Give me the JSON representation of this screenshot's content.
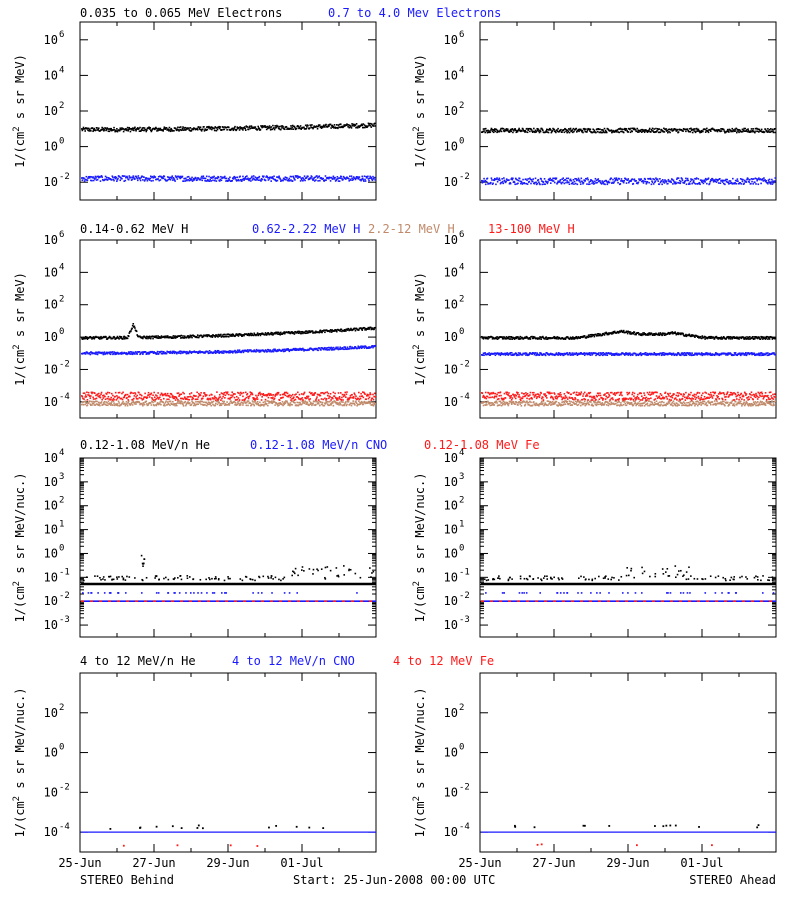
{
  "colors": {
    "black": "#000000",
    "blue": "#1a1aff",
    "tan": "#c08a6a",
    "red": "#ff1a1a"
  },
  "footer": {
    "left_label": "STEREO Behind",
    "center_label": "Start: 25-Jun-2008 00:00 UTC",
    "right_label": "STEREO Ahead"
  },
  "x_ticks": [
    "25-Jun",
    "27-Jun",
    "29-Jun",
    "01-Jul"
  ],
  "rows": [
    {
      "id": "electrons",
      "legend": [
        {
          "label": "0.035 to 0.065 MeV Electrons",
          "color": "#000000"
        },
        {
          "label": "0.7 to 4.0 Mev Electrons",
          "color": "#1a1aff"
        }
      ],
      "ylabel_main": "1/(cm",
      "ylabel_sup": "2",
      "ylabel_tail": " s sr MeV)",
      "y_ticks": [
        {
          "b": "10",
          "e": "-2",
          "v": -2
        },
        {
          "b": "10",
          "e": "0",
          "v": 0
        },
        {
          "b": "10",
          "e": "2",
          "v": 2
        },
        {
          "b": "10",
          "e": "4",
          "v": 4
        },
        {
          "b": "10",
          "e": "6",
          "v": 6
        }
      ]
    },
    {
      "id": "protons",
      "legend": [
        {
          "label": "0.14-0.62 MeV H",
          "color": "#000000"
        },
        {
          "label": "0.62-2.22 MeV H",
          "color": "#1a1aff"
        },
        {
          "label": "2.2-12 MeV H",
          "color": "#c08a6a"
        },
        {
          "label": "13-100 MeV H",
          "color": "#ff1a1a"
        }
      ],
      "ylabel_main": "1/(cm",
      "ylabel_sup": "2",
      "ylabel_tail": " s sr MeV)",
      "y_ticks": [
        {
          "b": "10",
          "e": "-4",
          "v": -4
        },
        {
          "b": "10",
          "e": "-2",
          "v": -2
        },
        {
          "b": "10",
          "e": "0",
          "v": 0
        },
        {
          "b": "10",
          "e": "2",
          "v": 2
        },
        {
          "b": "10",
          "e": "4",
          "v": 4
        },
        {
          "b": "10",
          "e": "6",
          "v": 6
        }
      ]
    },
    {
      "id": "heavy_low",
      "legend": [
        {
          "label": "0.12-1.08 MeV/n He",
          "color": "#000000"
        },
        {
          "label": "0.12-1.08 MeV/n CNO",
          "color": "#1a1aff"
        },
        {
          "label": "0.12-1.08 MeV Fe",
          "color": "#ff1a1a"
        }
      ],
      "ylabel_main": "1/(cm",
      "ylabel_sup": "2",
      "ylabel_tail": " s sr MeV/nuc.)",
      "y_ticks": [
        {
          "b": "10",
          "e": "-3",
          "v": -3
        },
        {
          "b": "10",
          "e": "-2",
          "v": -2
        },
        {
          "b": "10",
          "e": "-1",
          "v": -1
        },
        {
          "b": "10",
          "e": "0",
          "v": 0
        },
        {
          "b": "10",
          "e": "1",
          "v": 1
        },
        {
          "b": "10",
          "e": "2",
          "v": 2
        },
        {
          "b": "10",
          "e": "3",
          "v": 3
        },
        {
          "b": "10",
          "e": "4",
          "v": 4
        }
      ]
    },
    {
      "id": "heavy_high",
      "legend": [
        {
          "label": "4 to 12 MeV/n He",
          "color": "#000000"
        },
        {
          "label": "4 to 12 MeV/n CNO",
          "color": "#1a1aff"
        },
        {
          "label": "4 to 12 MeV Fe",
          "color": "#ff1a1a"
        }
      ],
      "ylabel_main": "1/(cm",
      "ylabel_sup": "2",
      "ylabel_tail": " s sr MeV/nuc.)",
      "y_ticks": [
        {
          "b": "10",
          "e": "-4",
          "v": -4
        },
        {
          "b": "10",
          "e": "-2",
          "v": -2
        },
        {
          "b": "10",
          "e": "0",
          "v": 0
        },
        {
          "b": "10",
          "e": "2",
          "v": 2
        }
      ]
    }
  ],
  "chart_data": [
    {
      "type": "scatter",
      "panel": "Behind electrons",
      "ylog": true,
      "ylim": [
        -3,
        7
      ],
      "x_days": [
        0,
        8
      ],
      "series": [
        {
          "name": "0.035 to 0.065 MeV Electrons",
          "level_log": 1.0,
          "trend": 0.25,
          "spread": 0.12
        },
        {
          "name": "0.7 to 4.0 Mev Electrons",
          "level_log": -1.75,
          "trend": 0,
          "spread": 0.15
        }
      ]
    },
    {
      "type": "scatter",
      "panel": "Ahead electrons",
      "ylog": true,
      "ylim": [
        -3,
        7
      ],
      "x_days": [
        0,
        8
      ],
      "series": [
        {
          "name": "0.035 to 0.065 MeV Electrons",
          "level_log": 0.95,
          "trend": 0,
          "spread": 0.12
        },
        {
          "name": "0.7 to 4.0 Mev Electrons",
          "level_log": -1.9,
          "trend": 0,
          "spread": 0.18
        }
      ]
    },
    {
      "type": "scatter",
      "panel": "Behind protons",
      "ylog": true,
      "ylim": [
        -5,
        6
      ],
      "x_days": [
        0,
        8
      ],
      "series": [
        {
          "name": "0.14-0.62 MeV H",
          "level_log": 0.0,
          "trend": 0.6,
          "spread": 0.08,
          "spike_day": 1.4,
          "spike_log": 0.8
        },
        {
          "name": "0.62-2.22 MeV H",
          "level_log": -0.95,
          "trend": 0.4,
          "spread": 0.08
        },
        {
          "name": "2.2-12 MeV H",
          "level_log": -4.05,
          "trend": 0,
          "spread": 0.15
        },
        {
          "name": "13-100 MeV H",
          "level_log": -3.6,
          "trend": 0,
          "spread": 0.25
        }
      ]
    },
    {
      "type": "scatter",
      "panel": "Ahead protons",
      "ylog": true,
      "ylim": [
        -5,
        6
      ],
      "x_days": [
        0,
        8
      ],
      "series": [
        {
          "name": "0.14-0.62 MeV H",
          "level_log": 0.0,
          "trend": 0.0,
          "spread": 0.08,
          "bump_day": 3.8,
          "bump_log": 0.4
        },
        {
          "name": "0.62-2.22 MeV H",
          "level_log": -1.0,
          "trend": 0,
          "spread": 0.08
        },
        {
          "name": "2.2-12 MeV H",
          "level_log": -4.05,
          "trend": 0,
          "spread": 0.15
        },
        {
          "name": "13-100 MeV H",
          "level_log": -3.6,
          "trend": 0,
          "spread": 0.25
        }
      ]
    },
    {
      "type": "scatter",
      "panel": "Behind heavy low",
      "ylog": true,
      "ylim": [
        -3.5,
        4
      ],
      "x_days": [
        0,
        8
      ],
      "series": [
        {
          "name": "0.12-1.08 MeV/n He",
          "level_log": -1.0,
          "spread": 0.1
        },
        {
          "name": "0.12-1.08 MeV/n CNO",
          "level_log": -2.0
        },
        {
          "name": "0.12-1.08 MeV Fe",
          "level_log": -2.0
        }
      ]
    },
    {
      "type": "scatter",
      "panel": "Ahead heavy low",
      "ylog": true,
      "ylim": [
        -3.5,
        4
      ],
      "x_days": [
        0,
        8
      ],
      "series": [
        {
          "name": "0.12-1.08 MeV/n He",
          "level_log": -1.0,
          "spread": 0.1
        },
        {
          "name": "0.12-1.08 MeV/n CNO",
          "level_log": -2.0
        },
        {
          "name": "0.12-1.08 MeV Fe",
          "level_log": -2.0
        }
      ]
    },
    {
      "type": "scatter",
      "panel": "Behind heavy high",
      "ylog": true,
      "ylim": [
        -5,
        4
      ],
      "x_days": [
        0,
        8
      ],
      "series": [
        {
          "name": "4 to 12 MeV/n He",
          "level_log": -3.7
        },
        {
          "name": "4 to 12 MeV/n CNO",
          "level_log": -4.0
        },
        {
          "name": "4 to 12 MeV Fe",
          "level_log": -4.6
        }
      ]
    },
    {
      "type": "scatter",
      "panel": "Ahead heavy high",
      "ylog": true,
      "ylim": [
        -5,
        4
      ],
      "x_days": [
        0,
        8
      ],
      "series": [
        {
          "name": "4 to 12 MeV/n He",
          "level_log": -3.7
        },
        {
          "name": "4 to 12 MeV/n CNO",
          "level_log": -4.0
        },
        {
          "name": "4 to 12 MeV Fe",
          "level_log": -4.6
        }
      ]
    }
  ]
}
